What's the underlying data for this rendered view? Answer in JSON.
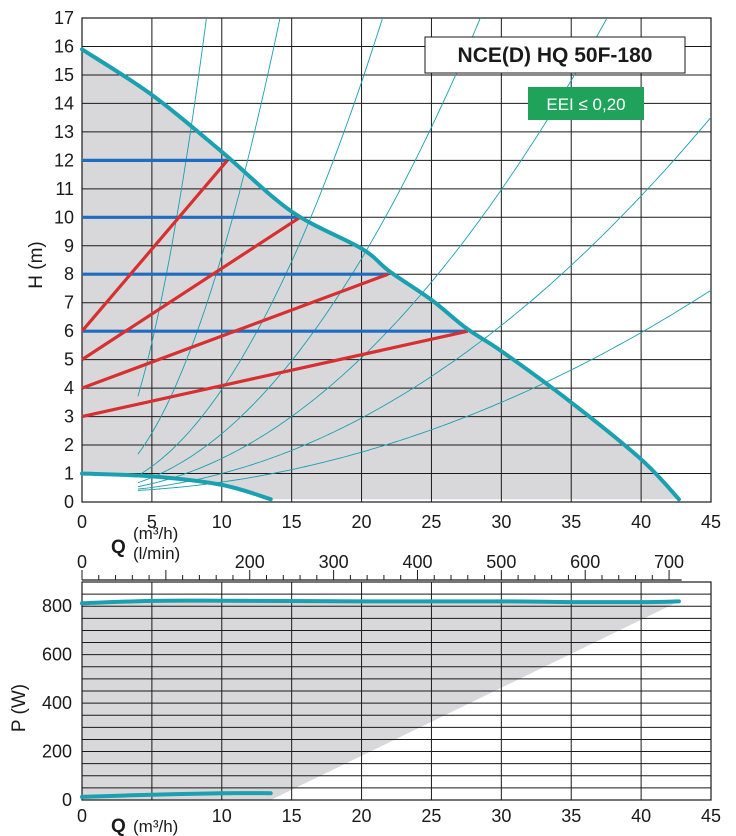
{
  "colors": {
    "curve": "#1aa0b0",
    "teal_thin": "#1a9fb0",
    "blue": "#1f6cc0",
    "red": "#d63030",
    "shade": "#d8d8da",
    "eei_bg": "#1fa35a",
    "grid": "#1a1a1a"
  },
  "legend": {
    "model": "NCE(D) HQ 50F-180",
    "eei": "EEI ≤ 0,20"
  },
  "labels": {
    "h_axis": "H (m)",
    "p_axis": "P (W)",
    "q_symbol": "Q",
    "q_unit_m3h": "(m³/h)",
    "q_unit_lmin": "(l/min)",
    "q_symbol_bottom": "Q",
    "q_unit_bottom": "(m³/h)"
  },
  "chart_data": [
    {
      "type": "line",
      "title": "NCE(D) HQ 50F-180",
      "xlabel": "Q (m³/h)",
      "ylabel": "H (m)",
      "xlim": [
        0,
        45
      ],
      "ylim": [
        0,
        17
      ],
      "x_ticks": [
        0,
        5,
        10,
        15,
        20,
        25,
        30,
        35,
        40,
        45
      ],
      "y_ticks": [
        0,
        1,
        2,
        3,
        4,
        5,
        6,
        7,
        8,
        9,
        10,
        11,
        12,
        13,
        14,
        15,
        16,
        17
      ],
      "grid": true,
      "secondary_x_axis": {
        "label": "(l/min)",
        "ticks": [
          0,
          200,
          300,
          400,
          500,
          600,
          700
        ]
      },
      "series": [
        {
          "role": "max_curve",
          "x": [
            0,
            5,
            10,
            15,
            20,
            22,
            25,
            27.5,
            30,
            35,
            40,
            42.7
          ],
          "y": [
            15.9,
            14.3,
            12.3,
            10.2,
            8.9,
            8.1,
            7.1,
            6.1,
            5.3,
            3.5,
            1.5,
            0.1
          ]
        },
        {
          "role": "min_curve",
          "x": [
            0,
            5,
            10,
            13.5
          ],
          "y": [
            1.0,
            0.9,
            0.6,
            0.1
          ]
        },
        {
          "role": "constant_pressure",
          "x": [
            0,
            10.4
          ],
          "y": [
            12,
            12
          ]
        },
        {
          "role": "constant_pressure",
          "x": [
            0,
            15.6
          ],
          "y": [
            10,
            10
          ]
        },
        {
          "role": "constant_pressure",
          "x": [
            0,
            21.9
          ],
          "y": [
            8,
            8
          ]
        },
        {
          "role": "constant_pressure",
          "x": [
            0,
            27.6
          ],
          "y": [
            6,
            6
          ]
        },
        {
          "role": "proportional_pressure",
          "x": [
            0,
            10.4
          ],
          "y": [
            6,
            12
          ]
        },
        {
          "role": "proportional_pressure",
          "x": [
            0,
            15.6
          ],
          "y": [
            5,
            10
          ]
        },
        {
          "role": "proportional_pressure",
          "x": [
            0,
            21.9
          ],
          "y": [
            4,
            8
          ]
        },
        {
          "role": "proportional_pressure",
          "x": [
            0,
            27.6
          ],
          "y": [
            3,
            6
          ]
        }
      ],
      "system_curves_k": [
        0.21,
        0.083,
        0.036,
        0.0205,
        0.0118,
        0.0065,
        0.0035
      ]
    },
    {
      "type": "area",
      "xlabel": "Q (m³/h)",
      "ylabel": "P (W)",
      "xlim": [
        0,
        45
      ],
      "ylim": [
        0,
        900
      ],
      "x_ticks": [
        0,
        10,
        15,
        20,
        25,
        30,
        35,
        40,
        45
      ],
      "y_ticks": [
        0,
        200,
        400,
        600,
        800
      ],
      "grid": true,
      "series": [
        {
          "role": "max_power",
          "x": [
            0,
            5,
            10,
            20,
            30,
            35,
            40,
            42.7
          ],
          "y": [
            812,
            822,
            823,
            820,
            820,
            817,
            817,
            820
          ]
        },
        {
          "role": "min_power",
          "x": [
            0,
            5,
            10,
            13.5
          ],
          "y": [
            13,
            22,
            28,
            28
          ]
        },
        {
          "role": "shaded_region_edge",
          "x": [
            13.5,
            42.7
          ],
          "y": [
            0,
            820
          ]
        }
      ]
    }
  ]
}
